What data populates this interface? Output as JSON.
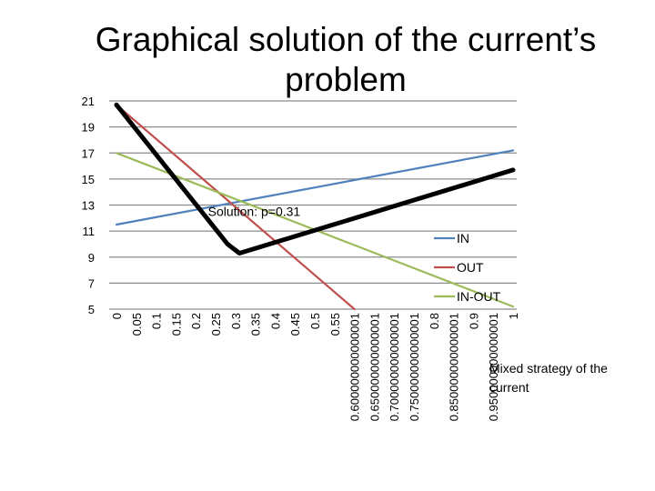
{
  "title": "Graphical solution of the current’s problem",
  "chart_data": {
    "type": "line",
    "title": "Graphical solution of the current’s problem",
    "xlabel": "Mixed strategy of the current",
    "ylabel": "",
    "x_tick_labels": [
      "0",
      "0.05",
      "0.1",
      "0.15",
      "0.2",
      "0.25",
      "0.3",
      "0.35",
      "0.4",
      "0.45",
      "0.5",
      "0.55",
      "0.600000000000001",
      "0.650000000000001",
      "0.700000000000001",
      "0.750000000000001",
      "0.8",
      "0.850000000000001",
      "0.9",
      "0.950000000000001",
      "1"
    ],
    "yticks": [
      5,
      7,
      9,
      11,
      13,
      15,
      17,
      19,
      21
    ],
    "ylim": [
      5,
      21
    ],
    "grid": true,
    "legend_position": "right",
    "series": [
      {
        "name": "IN",
        "color": "#4f81bd",
        "x": [
          0,
          1
        ],
        "y": [
          11.5,
          17.2
        ]
      },
      {
        "name": "OUT",
        "color": "#c0504d",
        "x": [
          0,
          0.6
        ],
        "y": [
          20.7,
          5.0
        ]
      },
      {
        "name": "IN-OUT",
        "color": "#9bbb59",
        "x": [
          0,
          1
        ],
        "y": [
          17.0,
          5.2
        ]
      },
      {
        "name": "",
        "color": "#000000",
        "x": [
          0,
          0.28,
          0.31,
          1
        ],
        "y": [
          20.7,
          10.0,
          9.3,
          15.7
        ]
      }
    ],
    "annotations": [
      {
        "text": "Solution: p=0.31",
        "x": 0.24,
        "y": 12.5
      }
    ]
  }
}
